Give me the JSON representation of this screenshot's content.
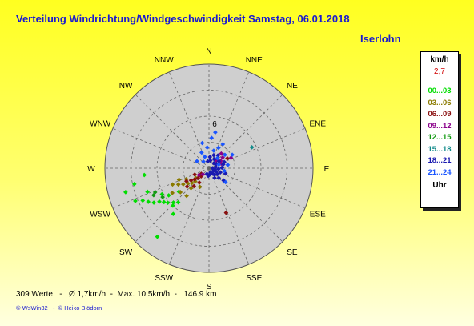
{
  "header": {
    "title": "Verteilung Windrichtung/Windgeschwindigkeit  Samstag, 06.01.2018",
    "location": "Iserlohn"
  },
  "legend": {
    "unit": "km/h",
    "mean_value": "2,7",
    "time_label": "Uhr",
    "intervals": [
      {
        "label": "00...03",
        "color": "#00dd00"
      },
      {
        "label": "03...06",
        "color": "#8a7a00"
      },
      {
        "label": "06...09",
        "color": "#8a1010"
      },
      {
        "label": "09...12",
        "color": "#8a008a"
      },
      {
        "label": "12...15",
        "color": "#119911"
      },
      {
        "label": "15...18",
        "color": "#118a8a"
      },
      {
        "label": "18...21",
        "color": "#1a1ab0"
      },
      {
        "label": "21...24",
        "color": "#1a55ff"
      }
    ]
  },
  "footer": {
    "summary": "309 Werte   -   Ø 1,7km/h  -  Max. 10,5km/h  -   146.9 km",
    "credits": "© WsWin32   -  © Heiko Blödorn"
  },
  "chart_data": {
    "type": "scatter",
    "subtype": "polar wind rose",
    "directions": [
      "N",
      "NNE",
      "NE",
      "ENE",
      "E",
      "ESE",
      "SE",
      "SSE",
      "S",
      "SSW",
      "SW",
      "WSW",
      "W",
      "WNW",
      "NW",
      "NNW"
    ],
    "radial_tick_labels": [
      "6"
    ],
    "radial_rings": 4,
    "rmax": 12,
    "series": [
      {
        "interval": "00...03",
        "color": "#00dd00",
        "points": [
          {
            "dir": 254,
            "speed": 10.0
          },
          {
            "dir": 246,
            "speed": 9.3
          },
          {
            "dir": 244,
            "speed": 8.5
          },
          {
            "dir": 241,
            "speed": 8.0
          },
          {
            "dir": 238,
            "speed": 7.5
          },
          {
            "dir": 236,
            "speed": 6.9
          },
          {
            "dir": 233,
            "speed": 6.5
          },
          {
            "dir": 230,
            "speed": 6.2
          },
          {
            "dir": 226,
            "speed": 5.7
          },
          {
            "dir": 222,
            "speed": 5.3
          },
          {
            "dir": 218,
            "speed": 6.7
          },
          {
            "dir": 224,
            "speed": 6.0
          },
          {
            "dir": 264,
            "speed": 7.5
          },
          {
            "dir": 258,
            "speed": 8.8
          },
          {
            "dir": 249,
            "speed": 7.6
          },
          {
            "dir": 241,
            "speed": 6.2
          },
          {
            "dir": 236,
            "speed": 5.6
          },
          {
            "dir": 232,
            "speed": 4.4
          },
          {
            "dir": 217,
            "speed": 9.9
          }
        ]
      },
      {
        "interval": "03...06",
        "color": "#8a7a00",
        "points": [
          {
            "dir": 238,
            "speed": 3.5
          },
          {
            "dir": 234,
            "speed": 3.0
          },
          {
            "dir": 229,
            "speed": 2.6
          },
          {
            "dir": 242,
            "speed": 4.0
          },
          {
            "dir": 246,
            "speed": 4.6
          },
          {
            "dir": 236,
            "speed": 5.1
          },
          {
            "dir": 226,
            "speed": 2.2
          },
          {
            "dir": 230,
            "speed": 4.3
          },
          {
            "dir": 222,
            "speed": 3.1
          },
          {
            "dir": 244,
            "speed": 2.9
          },
          {
            "dir": 206,
            "speed": 2.4
          },
          {
            "dir": 233,
            "speed": 1.9
          },
          {
            "dir": 249,
            "speed": 3.7
          },
          {
            "dir": 219,
            "speed": 4.1
          }
        ]
      },
      {
        "interval": "06...09",
        "color": "#8a1010",
        "points": [
          {
            "dir": 232,
            "speed": 2.1
          },
          {
            "dir": 228,
            "speed": 1.7
          },
          {
            "dir": 236,
            "speed": 2.5
          },
          {
            "dir": 224,
            "speed": 1.3
          },
          {
            "dir": 240,
            "speed": 3.0
          },
          {
            "dir": 214,
            "speed": 2.0
          },
          {
            "dir": 246,
            "speed": 1.8
          },
          {
            "dir": 159,
            "speed": 5.5
          },
          {
            "dir": 220,
            "speed": 2.7
          },
          {
            "dir": 234,
            "speed": 1.1
          },
          {
            "dir": 62,
            "speed": 2.4
          },
          {
            "dir": 230,
            "speed": 3.3
          }
        ]
      },
      {
        "interval": "09...12",
        "color": "#8a008a",
        "points": [
          {
            "dir": 44,
            "speed": 1.2
          },
          {
            "dir": 58,
            "speed": 1.6
          },
          {
            "dir": 70,
            "speed": 1.5
          },
          {
            "dir": 40,
            "speed": 2.2
          },
          {
            "dir": 225,
            "speed": 1.0
          },
          {
            "dir": 236,
            "speed": 1.4
          },
          {
            "dir": 65,
            "speed": 2.8
          },
          {
            "dir": 52,
            "speed": 2.0
          }
        ]
      },
      {
        "interval": "12...15",
        "color": "#119911",
        "points": [
          {
            "dir": 246,
            "speed": 6.8
          },
          {
            "dir": 238,
            "speed": 6.3
          },
          {
            "dir": 244,
            "speed": 7.1
          }
        ]
      },
      {
        "interval": "15...18",
        "color": "#118a8a",
        "points": [
          {
            "dir": 64,
            "speed": 5.5
          }
        ]
      },
      {
        "interval": "18...21",
        "color": "#1a1ab0",
        "points": [
          {
            "dir": 30,
            "speed": 1.2
          },
          {
            "dir": 60,
            "speed": 1.0
          },
          {
            "dir": 95,
            "speed": 1.1
          },
          {
            "dir": 140,
            "speed": 1.0
          },
          {
            "dir": 110,
            "speed": 1.4
          },
          {
            "dir": 80,
            "speed": 0.8
          },
          {
            "dir": 10,
            "speed": 0.9
          },
          {
            "dir": 170,
            "speed": 0.7
          },
          {
            "dir": 120,
            "speed": 0.6
          },
          {
            "dir": 75,
            "speed": 1.7
          },
          {
            "dir": 45,
            "speed": 0.8
          },
          {
            "dir": 150,
            "speed": 1.3
          },
          {
            "dir": 100,
            "speed": 0.7
          },
          {
            "dir": 20,
            "speed": 1.6
          },
          {
            "dir": 135,
            "speed": 1.6
          },
          {
            "dir": 88,
            "speed": 1.5
          },
          {
            "dir": 115,
            "speed": 0.9
          },
          {
            "dir": 160,
            "speed": 0.5
          },
          {
            "dir": 55,
            "speed": 1.4
          },
          {
            "dir": 5,
            "speed": 1.3
          },
          {
            "dir": 125,
            "speed": 1.2
          },
          {
            "dir": 68,
            "speed": 1.9
          },
          {
            "dir": 108,
            "speed": 2.0
          },
          {
            "dir": 145,
            "speed": 0.8
          },
          {
            "dir": 35,
            "speed": 1.8
          },
          {
            "dir": 350,
            "speed": 0.8
          },
          {
            "dir": 185,
            "speed": 0.9
          },
          {
            "dir": 90,
            "speed": 0.4
          },
          {
            "dir": 200,
            "speed": 0.7
          },
          {
            "dir": 130,
            "speed": 2.2
          }
        ]
      },
      {
        "interval": "21...24",
        "color": "#1a55ff",
        "points": [
          {
            "dir": 40,
            "speed": 1.5
          },
          {
            "dir": 15,
            "speed": 2.1
          },
          {
            "dir": 340,
            "speed": 1.4
          },
          {
            "dir": 355,
            "speed": 2.4
          },
          {
            "dir": 25,
            "speed": 2.6
          },
          {
            "dir": 80,
            "speed": 2.2
          },
          {
            "dir": 320,
            "speed": 1.0
          },
          {
            "dir": 5,
            "speed": 3.5
          },
          {
            "dir": 50,
            "speed": 2.4
          },
          {
            "dir": 345,
            "speed": 3.0
          },
          {
            "dir": 100,
            "speed": 1.8
          },
          {
            "dir": 60,
            "speed": 3.1
          },
          {
            "dir": 30,
            "speed": 3.2
          },
          {
            "dir": 300,
            "speed": 1.6
          },
          {
            "dir": 70,
            "speed": 1.2
          },
          {
            "dir": 10,
            "speed": 4.2
          },
          {
            "dir": 130,
            "speed": 2.5
          },
          {
            "dir": 335,
            "speed": 2.0
          }
        ]
      }
    ]
  }
}
